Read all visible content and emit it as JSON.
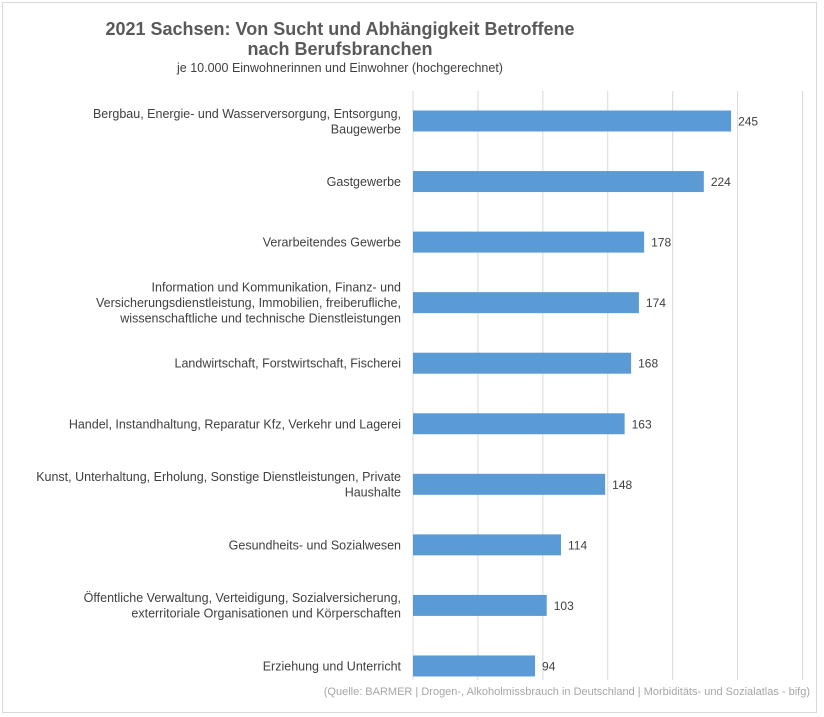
{
  "chart_data": {
    "type": "bar",
    "orientation": "horizontal",
    "title": "2021 Sachsen: Von Sucht und Abhängigkeit Betroffene nach Berufsbranchen",
    "title_lines": [
      "2021 Sachsen: Von Sucht und Abhängigkeit Betroffene",
      "nach Berufsbranchen"
    ],
    "subtitle": "je 10.000 Einwohnerinnen und Einwohner (hochgerechnet)",
    "categories": [
      [
        "Bergbau, Energie- und Wasserversorgung, Entsorgung,",
        "Baugewerbe"
      ],
      [
        "Gastgewerbe"
      ],
      [
        "Verarbeitendes Gewerbe"
      ],
      [
        "Information und Kommunikation, Finanz- und",
        "Versicherungsdienstleistung, Immobilien, freiberufliche,",
        "wissenschaftliche und technische Dienstleistungen"
      ],
      [
        "Landwirtschaft, Forstwirtschaft, Fischerei"
      ],
      [
        "Handel, Instandhaltung, Reparatur Kfz, Verkehr und Lagerei"
      ],
      [
        "Kunst, Unterhaltung, Erholung, Sonstige Dienstleistungen, Private",
        "Haushalte"
      ],
      [
        "Gesundheits- und Sozialwesen"
      ],
      [
        "Öffentliche Verwaltung, Verteidigung, Sozialversicherung,",
        "exterritoriale Organisationen und Körperschaften"
      ],
      [
        "Erziehung und Unterricht"
      ]
    ],
    "values": [
      245,
      224,
      178,
      174,
      168,
      163,
      148,
      114,
      103,
      94
    ],
    "xlim": [
      0,
      300
    ],
    "grid_step": 50,
    "grid": true,
    "bar_color": "#5b9bd5",
    "source": "(Quelle: BARMER | Drogen-, Alkoholmissbrauch in Deutschland | Morbiditäts- und Sozialatlas - bifg)"
  }
}
